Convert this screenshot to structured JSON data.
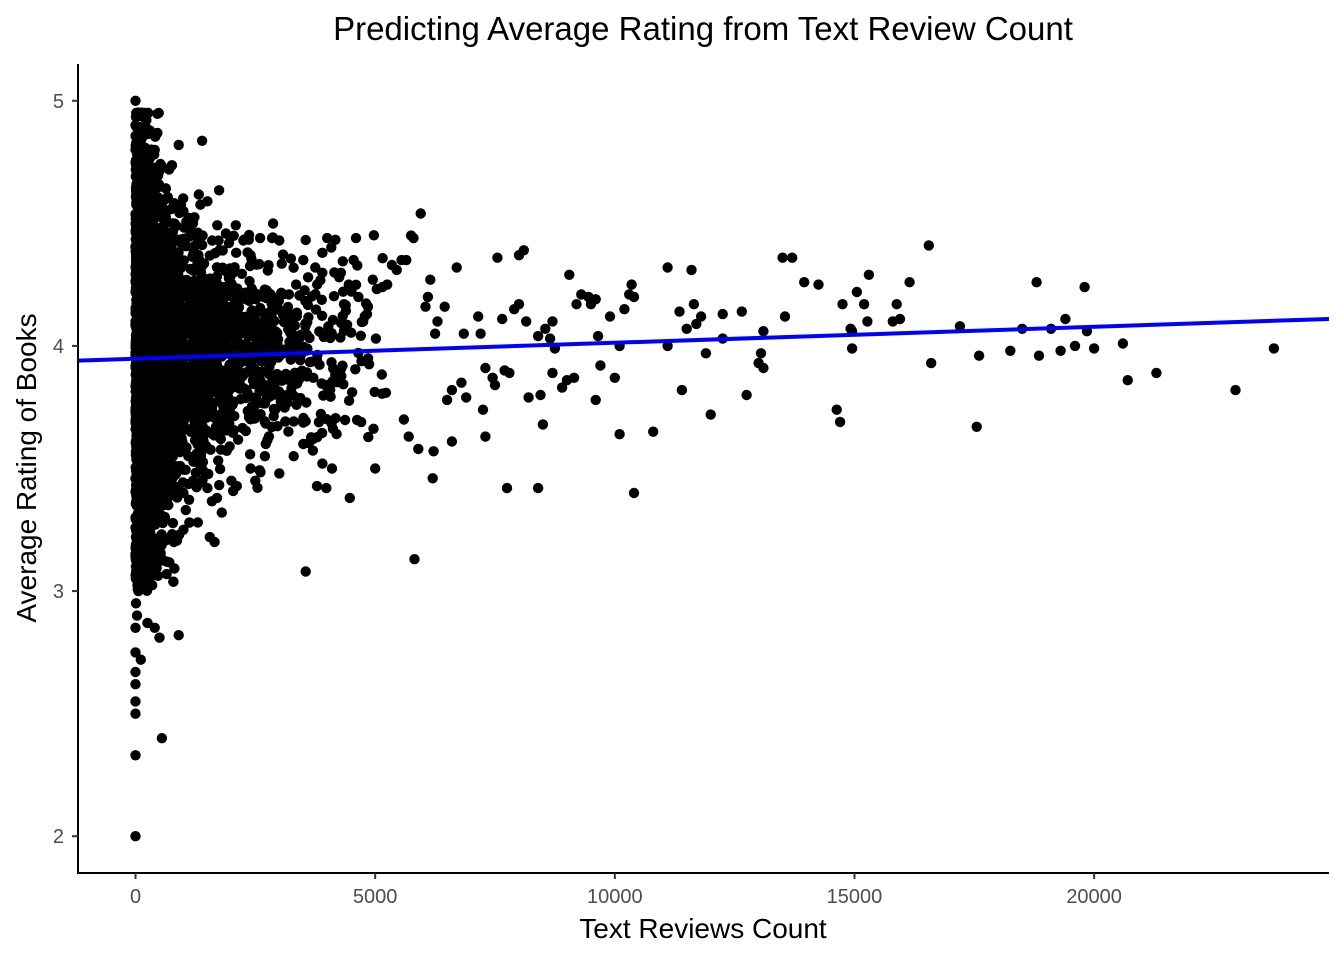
{
  "chart_data": {
    "type": "scatter",
    "title": "Predicting Average Rating from Text Review Count",
    "xlabel": "Text Reviews Count",
    "ylabel": "Average Rating of Books",
    "xlim": [
      -1200,
      24900
    ],
    "ylim": [
      1.85,
      5.15
    ],
    "x_ticks": [
      0,
      5000,
      10000,
      15000,
      20000
    ],
    "x_tick_labels": [
      "0",
      "5000",
      "10000",
      "15000",
      "20000"
    ],
    "y_ticks": [
      2,
      3,
      4,
      5
    ],
    "y_tick_labels": [
      "2",
      "3",
      "4",
      "5"
    ],
    "grid": false,
    "legend": "none",
    "point_color": "#000000",
    "fit_line_color": "#0000ff",
    "series": [
      {
        "values_xy": [
          [
            0,
            5.0
          ],
          [
            0,
            2.0
          ],
          [
            0,
            2.33
          ],
          [
            0,
            2.5
          ],
          [
            0,
            2.55
          ],
          [
            0,
            2.62
          ],
          [
            0,
            2.67
          ],
          [
            0,
            2.75
          ],
          [
            0,
            4.9
          ],
          [
            0,
            4.8
          ],
          [
            20,
            4.7
          ],
          [
            50,
            4.6
          ],
          [
            0,
            2.85
          ],
          [
            30,
            2.9
          ],
          [
            10,
            2.95
          ],
          [
            60,
            3.0
          ],
          [
            40,
            3.05
          ],
          [
            80,
            3.1
          ],
          [
            0,
            3.15
          ],
          [
            120,
            3.2
          ],
          [
            60,
            4.55
          ],
          [
            30,
            4.65
          ],
          [
            100,
            4.75
          ],
          [
            110,
            2.72
          ],
          [
            250,
            2.87
          ],
          [
            400,
            2.85
          ],
          [
            500,
            2.81
          ],
          [
            550,
            2.4
          ],
          [
            900,
            2.82
          ],
          [
            650,
            3.12
          ],
          [
            350,
            3.08
          ],
          [
            200,
            3.1
          ],
          [
            700,
            4.72
          ],
          [
            900,
            4.82
          ],
          [
            500,
            4.65
          ],
          [
            300,
            4.7
          ],
          [
            200,
            4.62
          ],
          [
            800,
            4.57
          ],
          [
            1000,
            4.55
          ],
          [
            1200,
            4.5
          ],
          [
            1500,
            4.59
          ],
          [
            800,
            3.2
          ],
          [
            1000,
            3.25
          ],
          [
            1300,
            3.28
          ],
          [
            1550,
            3.22
          ],
          [
            1650,
            3.2
          ],
          [
            1800,
            3.32
          ],
          [
            200,
            3.3
          ],
          [
            500,
            3.35
          ],
          [
            1000,
            3.4
          ],
          [
            1200,
            3.45
          ],
          [
            1500,
            3.42
          ],
          [
            1700,
            3.38
          ],
          [
            2000,
            3.45
          ],
          [
            2400,
            3.5
          ],
          [
            2500,
            3.45
          ],
          [
            2700,
            3.55
          ],
          [
            3000,
            3.48
          ],
          [
            3300,
            3.55
          ],
          [
            3500,
            3.6
          ],
          [
            3700,
            3.62
          ],
          [
            3900,
            3.52
          ],
          [
            4100,
            3.5
          ],
          [
            3980,
            3.42
          ],
          [
            4470,
            3.38
          ],
          [
            3550,
            3.08
          ],
          [
            5000,
            3.5
          ],
          [
            5820,
            3.13
          ],
          [
            6200,
            3.46
          ],
          [
            6220,
            3.57
          ],
          [
            6600,
            3.61
          ],
          [
            5900,
            3.58
          ],
          [
            5700,
            3.63
          ],
          [
            5600,
            3.7
          ],
          [
            6500,
            3.78
          ],
          [
            6900,
            3.79
          ],
          [
            7300,
            3.63
          ],
          [
            7750,
            3.42
          ],
          [
            8400,
            3.42
          ],
          [
            8500,
            3.68
          ],
          [
            9600,
            3.78
          ],
          [
            10100,
            3.64
          ],
          [
            10400,
            3.4
          ],
          [
            10800,
            3.65
          ],
          [
            12000,
            3.72
          ],
          [
            12750,
            3.8
          ],
          [
            11400,
            3.82
          ],
          [
            14630,
            3.74
          ],
          [
            14700,
            3.69
          ],
          [
            17550,
            3.67
          ],
          [
            22950,
            3.82
          ],
          [
            23750,
            3.99
          ],
          [
            21300,
            3.89
          ],
          [
            20700,
            3.86
          ],
          [
            20600,
            4.01
          ],
          [
            20000,
            3.99
          ],
          [
            19600,
            4.0
          ],
          [
            19850,
            4.06
          ],
          [
            19800,
            4.24
          ],
          [
            19300,
            3.98
          ],
          [
            19400,
            4.11
          ],
          [
            19100,
            4.07
          ],
          [
            18850,
            3.96
          ],
          [
            18800,
            4.26
          ],
          [
            18500,
            4.07
          ],
          [
            18250,
            3.98
          ],
          [
            17600,
            3.96
          ],
          [
            17200,
            4.08
          ],
          [
            16600,
            3.93
          ],
          [
            16550,
            4.41
          ],
          [
            16150,
            4.26
          ],
          [
            15950,
            4.11
          ],
          [
            15800,
            4.1
          ],
          [
            15880,
            4.17
          ],
          [
            15300,
            4.29
          ],
          [
            15270,
            4.1
          ],
          [
            15200,
            4.17
          ],
          [
            15050,
            4.22
          ],
          [
            14950,
            3.99
          ],
          [
            14950,
            4.06
          ],
          [
            14920,
            4.07
          ],
          [
            14750,
            4.17
          ],
          [
            14250,
            4.25
          ],
          [
            13950,
            4.26
          ],
          [
            13700,
            4.36
          ],
          [
            13500,
            4.36
          ],
          [
            13550,
            4.12
          ],
          [
            13100,
            4.06
          ],
          [
            13050,
            3.97
          ],
          [
            13100,
            3.91
          ],
          [
            13000,
            3.93
          ],
          [
            12650,
            4.14
          ],
          [
            12250,
            4.03
          ],
          [
            12250,
            4.13
          ],
          [
            11900,
            3.97
          ],
          [
            11800,
            4.12
          ],
          [
            11700,
            4.09
          ],
          [
            11650,
            4.17
          ],
          [
            11600,
            4.31
          ],
          [
            11500,
            4.07
          ],
          [
            11350,
            4.14
          ],
          [
            11100,
            4.32
          ],
          [
            11100,
            4.0
          ],
          [
            10400,
            4.2
          ],
          [
            10350,
            4.25
          ],
          [
            10300,
            4.21
          ],
          [
            10200,
            4.15
          ],
          [
            10100,
            4.0
          ],
          [
            10000,
            3.87
          ],
          [
            9900,
            4.12
          ],
          [
            9700,
            3.92
          ],
          [
            9600,
            4.19
          ],
          [
            9650,
            4.04
          ],
          [
            9500,
            4.17
          ],
          [
            9450,
            4.2
          ],
          [
            9300,
            4.21
          ],
          [
            9200,
            4.17
          ],
          [
            9150,
            3.87
          ],
          [
            9050,
            4.29
          ],
          [
            9000,
            3.86
          ],
          [
            8900,
            3.83
          ],
          [
            8750,
            3.99
          ],
          [
            8700,
            4.1
          ],
          [
            8700,
            3.89
          ],
          [
            8650,
            4.03
          ],
          [
            8550,
            4.07
          ],
          [
            8450,
            3.8
          ],
          [
            8400,
            4.04
          ],
          [
            8200,
            3.79
          ],
          [
            8150,
            4.1
          ],
          [
            8100,
            4.39
          ],
          [
            8000,
            4.37
          ],
          [
            8000,
            4.17
          ],
          [
            7900,
            4.15
          ],
          [
            7800,
            3.89
          ],
          [
            7700,
            3.9
          ],
          [
            7650,
            4.11
          ],
          [
            7550,
            4.36
          ],
          [
            7500,
            3.84
          ],
          [
            7450,
            3.87
          ],
          [
            7300,
            3.91
          ],
          [
            7250,
            3.74
          ],
          [
            7200,
            4.05
          ],
          [
            7150,
            4.12
          ],
          [
            6850,
            4.05
          ],
          [
            6700,
            4.32
          ],
          [
            6800,
            3.85
          ],
          [
            6600,
            3.82
          ],
          [
            6450,
            4.16
          ],
          [
            6300,
            4.1
          ],
          [
            6250,
            4.05
          ],
          [
            6150,
            4.27
          ],
          [
            6100,
            4.2
          ],
          [
            6050,
            4.16
          ],
          [
            5950,
            4.54
          ],
          [
            5800,
            4.44
          ],
          [
            5750,
            4.45
          ],
          [
            5650,
            4.35
          ],
          [
            5550,
            4.35
          ],
          [
            5450,
            4.31
          ],
          [
            5350,
            4.33
          ],
          [
            5250,
            4.25
          ],
          [
            5150,
            4.24
          ],
          [
            4950,
            4.27
          ],
          [
            4850,
            4.16
          ],
          [
            4750,
            4.1
          ],
          [
            4650,
            4.2
          ],
          [
            4600,
            4.44
          ],
          [
            4550,
            4.35
          ],
          [
            4450,
            4.25
          ],
          [
            4350,
            4.17
          ],
          [
            4250,
            4.28
          ],
          [
            4150,
            4.3
          ],
          [
            4000,
            4.44
          ],
          [
            3900,
            4.38
          ],
          [
            3750,
            4.32
          ],
          [
            3600,
            4.28
          ],
          [
            3500,
            4.35
          ],
          [
            3350,
            4.25
          ],
          [
            3200,
            4.21
          ],
          [
            3000,
            4.43
          ],
          [
            2850,
            4.44
          ],
          [
            2600,
            4.44
          ],
          [
            2400,
            4.37
          ],
          [
            2250,
            4.43
          ],
          [
            2100,
            4.38
          ],
          [
            1950,
            4.42
          ],
          [
            1750,
            4.39
          ],
          [
            1600,
            4.43
          ],
          [
            1400,
            4.45
          ],
          [
            1150,
            4.47
          ],
          [
            950,
            4.42
          ],
          [
            850,
            4.49
          ]
        ]
      }
    ],
    "fit_line": {
      "x": [
        -1200,
        24900
      ],
      "y": [
        3.94,
        4.11
      ]
    }
  }
}
